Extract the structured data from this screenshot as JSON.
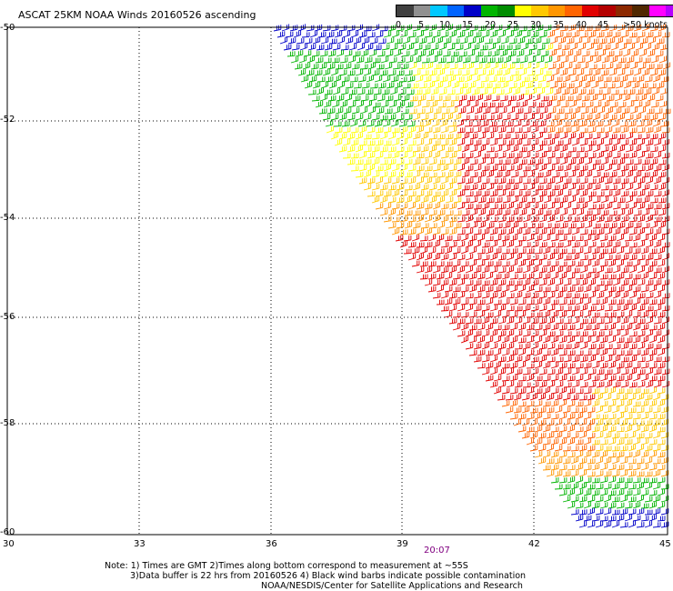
{
  "title": "ASCAT 25KM NOAA Winds 20160526 ascending",
  "legend": {
    "colors": [
      "#404040",
      "#909090",
      "#00c8ff",
      "#0064ff",
      "#0000c8",
      "#00b400",
      "#008c00",
      "#ffff00",
      "#ffc800",
      "#ff9600",
      "#ff6400",
      "#e10000",
      "#b40000",
      "#8c2800",
      "#502800",
      "#ff00ff",
      "#b400ff",
      "#5000a0"
    ],
    "labels": [
      "0",
      "5",
      "10",
      "15",
      "20",
      "25",
      "30",
      "35",
      "40",
      "45",
      ">50 knots"
    ]
  },
  "axes": {
    "y_labels": [
      "-50",
      "-52",
      "-54",
      "-56",
      "-58",
      "-60"
    ],
    "x_labels": [
      "30",
      "33",
      "36",
      "39",
      "42",
      "45"
    ]
  },
  "time_label": "20:07",
  "notes": {
    "line1": "Note: 1) Times are GMT 2)Times along bottom correspond to measurement at ~55S",
    "line2": "3)Data buffer is 22 hrs from 20160526 4) Black wind barbs indicate possible contamination",
    "line3": "NOAA/NESDIS/Center for Satellite Applications and Research"
  }
}
